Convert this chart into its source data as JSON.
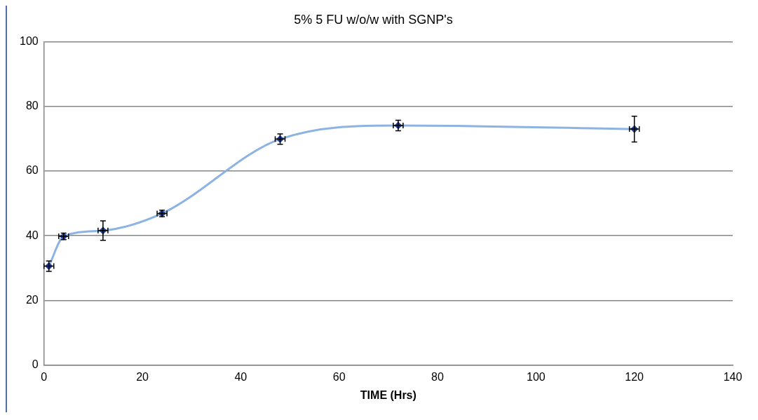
{
  "chart_data": {
    "type": "line",
    "title": "5% 5 FU w/o/w with SGNP's",
    "xlabel": "TIME (Hrs)",
    "x": [
      1,
      4,
      12,
      24,
      48,
      72,
      120
    ],
    "series": [
      {
        "color": "#8db3e2",
        "values": [
          30.6,
          39.8,
          41.6,
          46.9,
          69.9,
          74.1,
          73.0
        ],
        "errors": [
          1.6,
          1,
          3,
          1,
          1.6,
          1.6,
          4
        ],
        "xerrors": [
          1,
          1,
          1,
          1,
          1,
          1,
          1
        ]
      }
    ],
    "xlim": [
      0,
      140
    ],
    "xticks": [
      0,
      20,
      40,
      60,
      80,
      100,
      120,
      140
    ],
    "ylim": [
      0,
      100
    ],
    "yticks": [
      0,
      20,
      40,
      60,
      80,
      100
    ],
    "grid": "y",
    "legend": false,
    "marker": "diamond",
    "line_style": "solid"
  }
}
